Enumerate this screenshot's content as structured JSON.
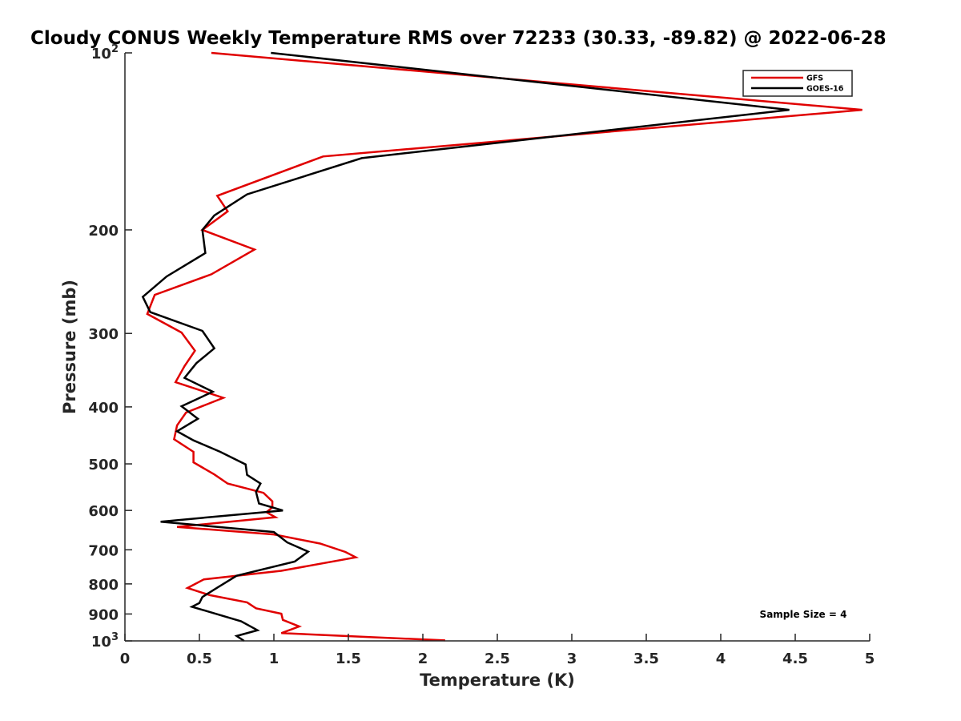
{
  "chart_data": {
    "type": "line",
    "title": "Cloudy CONUS Weekly Temperature RMS over 72233 (30.33, -89.82) @ 2022-06-28",
    "xlabel": "Temperature (K)",
    "ylabel": "Pressure (mb)",
    "xlim": [
      0,
      5
    ],
    "ylim": [
      100,
      1000
    ],
    "yscale": "log",
    "yreversed": true,
    "grid": false,
    "legend_position": "top-right",
    "x_ticks": [
      "0",
      "0.5",
      "1",
      "1.5",
      "2",
      "2.5",
      "3",
      "3.5",
      "4",
      "4.5",
      "5"
    ],
    "y_ticks": [
      {
        "value": 100,
        "base": "10",
        "exp": "2"
      },
      {
        "value": 200,
        "label": "200"
      },
      {
        "value": 300,
        "label": "300"
      },
      {
        "value": 400,
        "label": "400"
      },
      {
        "value": 500,
        "label": "500"
      },
      {
        "value": 600,
        "label": "600"
      },
      {
        "value": 700,
        "label": "700"
      },
      {
        "value": 800,
        "label": "800"
      },
      {
        "value": 900,
        "label": "900"
      },
      {
        "value": 1000,
        "base": "10",
        "exp": "3"
      }
    ],
    "annotation": "Sample Size = 4",
    "series": [
      {
        "name": "GFS",
        "color": "#e00000",
        "points": [
          [
            0.58,
            100
          ],
          [
            4.95,
            125
          ],
          [
            1.33,
            150
          ],
          [
            0.62,
            175
          ],
          [
            0.69,
            186
          ],
          [
            0.52,
            200
          ],
          [
            0.87,
            216
          ],
          [
            0.58,
            238
          ],
          [
            0.2,
            258
          ],
          [
            0.15,
            278
          ],
          [
            0.38,
            299
          ],
          [
            0.47,
            321
          ],
          [
            0.4,
            341
          ],
          [
            0.34,
            363
          ],
          [
            0.66,
            386
          ],
          [
            0.41,
            409
          ],
          [
            0.35,
            430
          ],
          [
            0.33,
            454
          ],
          [
            0.46,
            477
          ],
          [
            0.46,
            497
          ],
          [
            0.6,
            521
          ],
          [
            0.69,
            540
          ],
          [
            0.93,
            560
          ],
          [
            0.99,
            579
          ],
          [
            0.99,
            593
          ],
          [
            0.95,
            604
          ],
          [
            1.01,
            616
          ],
          [
            0.35,
            640
          ],
          [
            1.0,
            659
          ],
          [
            1.31,
            683
          ],
          [
            1.48,
            706
          ],
          [
            1.55,
            721
          ],
          [
            1.05,
            760
          ],
          [
            0.53,
            786
          ],
          [
            0.42,
            813
          ],
          [
            0.57,
            836
          ],
          [
            0.82,
            860
          ],
          [
            0.88,
            880
          ],
          [
            1.05,
            899
          ],
          [
            1.06,
            921
          ],
          [
            1.17,
            945
          ],
          [
            1.05,
            970
          ],
          [
            2.15,
            998
          ]
        ]
      },
      {
        "name": "GOES-16",
        "color": "#000000",
        "points": [
          [
            0.98,
            100
          ],
          [
            4.46,
            125
          ],
          [
            1.59,
            151
          ],
          [
            0.82,
            174
          ],
          [
            0.6,
            189
          ],
          [
            0.52,
            200
          ],
          [
            0.54,
            219
          ],
          [
            0.28,
            240
          ],
          [
            0.12,
            260
          ],
          [
            0.17,
            276
          ],
          [
            0.52,
            297
          ],
          [
            0.6,
            318
          ],
          [
            0.48,
            337
          ],
          [
            0.4,
            357
          ],
          [
            0.59,
            377
          ],
          [
            0.38,
            399
          ],
          [
            0.49,
            419
          ],
          [
            0.35,
            440
          ],
          [
            0.46,
            456
          ],
          [
            0.64,
            477
          ],
          [
            0.81,
            501
          ],
          [
            0.82,
            522
          ],
          [
            0.91,
            540
          ],
          [
            0.88,
            558
          ],
          [
            0.9,
            584
          ],
          [
            1.06,
            600
          ],
          [
            0.24,
            627
          ],
          [
            1.0,
            653
          ],
          [
            1.09,
            680
          ],
          [
            1.23,
            705
          ],
          [
            1.14,
            733
          ],
          [
            0.75,
            775
          ],
          [
            0.62,
            812
          ],
          [
            0.52,
            842
          ],
          [
            0.5,
            862
          ],
          [
            0.45,
            875
          ],
          [
            0.78,
            926
          ],
          [
            0.89,
            959
          ],
          [
            0.75,
            981
          ],
          [
            0.8,
            1000
          ]
        ]
      }
    ]
  }
}
